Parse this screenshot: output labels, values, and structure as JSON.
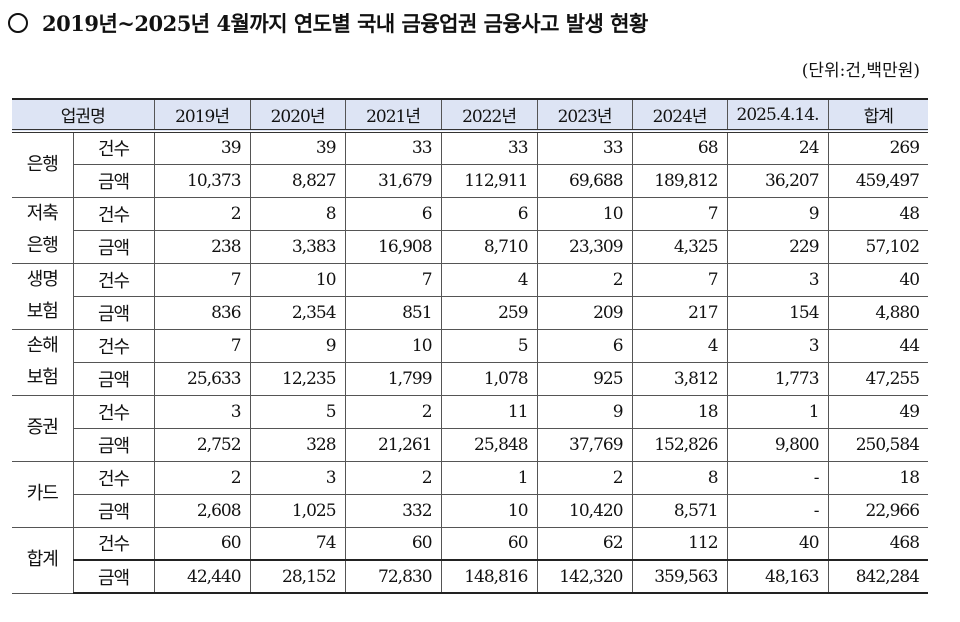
{
  "title": "2019년~2025년 4월까지 연도별 국내 금융업권 금융사고 발생 현황",
  "bullet_icon": "circle-bullet",
  "unit_note": "(단위:건,백만원)",
  "table": {
    "header": {
      "category_label": "업권명",
      "columns": [
        "2019년",
        "2020년",
        "2021년",
        "2022년",
        "2023년",
        "2024년",
        "2025.4.14.",
        "합계"
      ]
    },
    "metric_labels": {
      "count": "건수",
      "amount": "금액"
    },
    "groups": [
      {
        "name": "은행",
        "count": [
          "39",
          "39",
          "33",
          "33",
          "33",
          "68",
          "24",
          "269"
        ],
        "amount": [
          "10,373",
          "8,827",
          "31,679",
          "112,911",
          "69,688",
          "189,812",
          "36,207",
          "459,497"
        ]
      },
      {
        "name": "저축\n은행",
        "count": [
          "2",
          "8",
          "6",
          "6",
          "10",
          "7",
          "9",
          "48"
        ],
        "amount": [
          "238",
          "3,383",
          "16,908",
          "8,710",
          "23,309",
          "4,325",
          "229",
          "57,102"
        ]
      },
      {
        "name": "생명\n보험",
        "count": [
          "7",
          "10",
          "7",
          "4",
          "2",
          "7",
          "3",
          "40"
        ],
        "amount": [
          "836",
          "2,354",
          "851",
          "259",
          "209",
          "217",
          "154",
          "4,880"
        ]
      },
      {
        "name": "손해\n보험",
        "count": [
          "7",
          "9",
          "10",
          "5",
          "6",
          "4",
          "3",
          "44"
        ],
        "amount": [
          "25,633",
          "12,235",
          "1,799",
          "1,078",
          "925",
          "3,812",
          "1,773",
          "47,255"
        ]
      },
      {
        "name": "증권",
        "count": [
          "3",
          "5",
          "2",
          "11",
          "9",
          "18",
          "1",
          "49"
        ],
        "amount": [
          "2,752",
          "328",
          "21,261",
          "25,848",
          "37,769",
          "152,826",
          "9,800",
          "250,584"
        ]
      },
      {
        "name": "카드",
        "count": [
          "2",
          "3",
          "2",
          "1",
          "2",
          "8",
          "-",
          "18"
        ],
        "amount": [
          "2,608",
          "1,025",
          "332",
          "10",
          "10,420",
          "8,571",
          "-",
          "22,966"
        ]
      },
      {
        "name": "합계",
        "count": [
          "60",
          "74",
          "60",
          "60",
          "62",
          "112",
          "40",
          "468"
        ],
        "amount": [
          "42,440",
          "28,152",
          "72,830",
          "148,816",
          "142,320",
          "359,563",
          "48,163",
          "842,284"
        ]
      }
    ]
  },
  "colors": {
    "header_bg": "#dde4f4",
    "border": "#555555",
    "text": "#111111"
  }
}
